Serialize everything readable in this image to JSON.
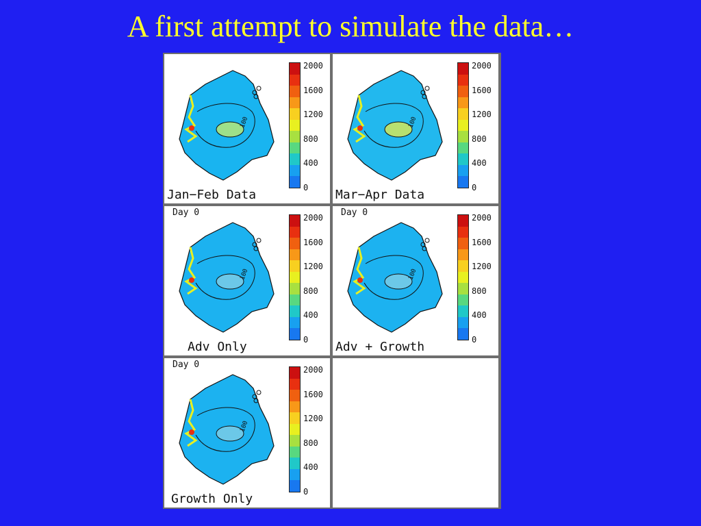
{
  "slide": {
    "title": "A first attempt to simulate the data…"
  },
  "colorbar": {
    "ticks": [
      "2000",
      "1600",
      "1200",
      "800",
      "400",
      "0"
    ],
    "colors": [
      "#cc1010",
      "#e83010",
      "#f06010",
      "#f89818",
      "#f8d020",
      "#e8f020",
      "#a8e040",
      "#58d880",
      "#20c8c8",
      "#18a0f0",
      "#1878f0"
    ]
  },
  "panels": [
    {
      "caption": "Jan−Feb Data",
      "day": "",
      "fill": "#19b4f0",
      "hotspot": "#9ee08a"
    },
    {
      "caption": "Mar−Apr Data",
      "day": "",
      "fill": "#22b8ee",
      "hotspot": "#b8e070"
    },
    {
      "caption": "Adv Only",
      "day": "Day 0",
      "fill": "#1cb2f0",
      "hotspot": "#6cc8e8"
    },
    {
      "caption": "Adv + Growth",
      "day": "Day 0",
      "fill": "#1cb2f0",
      "hotspot": "#6cc8e8"
    },
    {
      "caption": "Growth Only",
      "day": "Day 0",
      "fill": "#1cb2f0",
      "hotspot": "#6cc8e8"
    },
    {
      "caption": "",
      "day": "",
      "fill": "",
      "hotspot": ""
    }
  ],
  "contour_label": "100"
}
